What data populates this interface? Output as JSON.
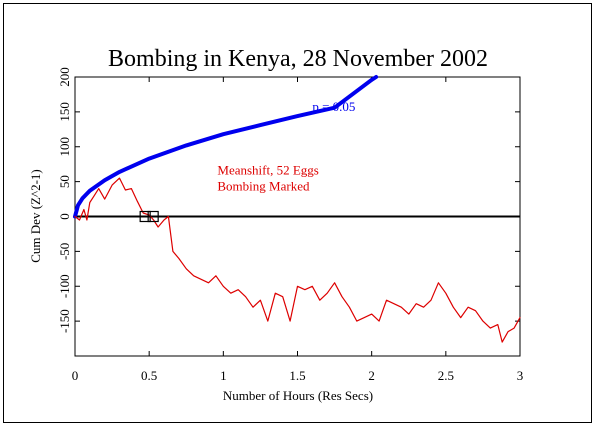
{
  "chart_data": {
    "type": "line",
    "title": "Bombing in Kenya, 28 November 2002",
    "xlabel": "Number of Hours (Res Secs)",
    "ylabel": "Cum Dev (Z^2-1)",
    "xlim": [
      0,
      3
    ],
    "ylim": [
      -200,
      200
    ],
    "x_ticks": [
      0,
      0.5,
      1,
      1.5,
      2,
      2.5,
      3
    ],
    "x_tick_labels": [
      "0",
      "0.5",
      "1",
      "1.5",
      "2",
      "2.5",
      "3"
    ],
    "y_ticks": [
      -150,
      -100,
      -50,
      0,
      50,
      100,
      150,
      200
    ],
    "y_tick_labels": [
      "-150",
      "-100",
      "-50",
      "0",
      "50",
      "100",
      "150",
      "200"
    ],
    "grid": false,
    "annotations": {
      "p_label": "p = 0.05",
      "series_label_line1": "Meanshift, 52 Eggs",
      "series_label_line2": "Bombing Marked"
    },
    "series": [
      {
        "name": "p = 0.05",
        "color": "#0000ee",
        "x": [
          0,
          0.02,
          0.05,
          0.1,
          0.2,
          0.3,
          0.5,
          0.75,
          1.0,
          1.25,
          1.5,
          1.75,
          2.0,
          2.03
        ],
        "y": [
          0,
          16,
          26,
          37,
          52,
          64,
          83,
          102,
          118,
          131,
          144,
          156,
          196,
          200
        ]
      },
      {
        "name": "Meanshift, 52 Eggs",
        "color": "#dd0000",
        "x": [
          0,
          0.03,
          0.06,
          0.08,
          0.1,
          0.13,
          0.16,
          0.2,
          0.25,
          0.3,
          0.34,
          0.38,
          0.42,
          0.46,
          0.5,
          0.53,
          0.56,
          0.6,
          0.63,
          0.66,
          0.7,
          0.75,
          0.8,
          0.85,
          0.9,
          0.95,
          1.0,
          1.05,
          1.1,
          1.15,
          1.2,
          1.25,
          1.3,
          1.35,
          1.4,
          1.45,
          1.5,
          1.55,
          1.6,
          1.65,
          1.7,
          1.75,
          1.8,
          1.85,
          1.9,
          1.95,
          2.0,
          2.05,
          2.1,
          2.15,
          2.2,
          2.25,
          2.3,
          2.35,
          2.4,
          2.45,
          2.5,
          2.55,
          2.6,
          2.65,
          2.7,
          2.75,
          2.8,
          2.85,
          2.88,
          2.92,
          2.96,
          3.0
        ],
        "y": [
          0,
          -5,
          10,
          -5,
          20,
          30,
          40,
          25,
          45,
          55,
          38,
          40,
          22,
          5,
          2,
          -5,
          -15,
          -5,
          0,
          -50,
          -60,
          -75,
          -85,
          -90,
          -95,
          -85,
          -100,
          -110,
          -105,
          -115,
          -130,
          -120,
          -150,
          -110,
          -115,
          -150,
          -100,
          -105,
          -100,
          -120,
          -110,
          -95,
          -115,
          -130,
          -150,
          -145,
          -140,
          -150,
          -120,
          -125,
          -130,
          -140,
          -125,
          -130,
          -120,
          -95,
          -110,
          -130,
          -145,
          -130,
          -135,
          -150,
          -160,
          -155,
          -180,
          -165,
          -160,
          -145
        ]
      }
    ],
    "markers": [
      {
        "type": "square",
        "x": 0.5,
        "y": 0
      },
      {
        "type": "square",
        "x": 0.5,
        "y": 0
      }
    ]
  }
}
